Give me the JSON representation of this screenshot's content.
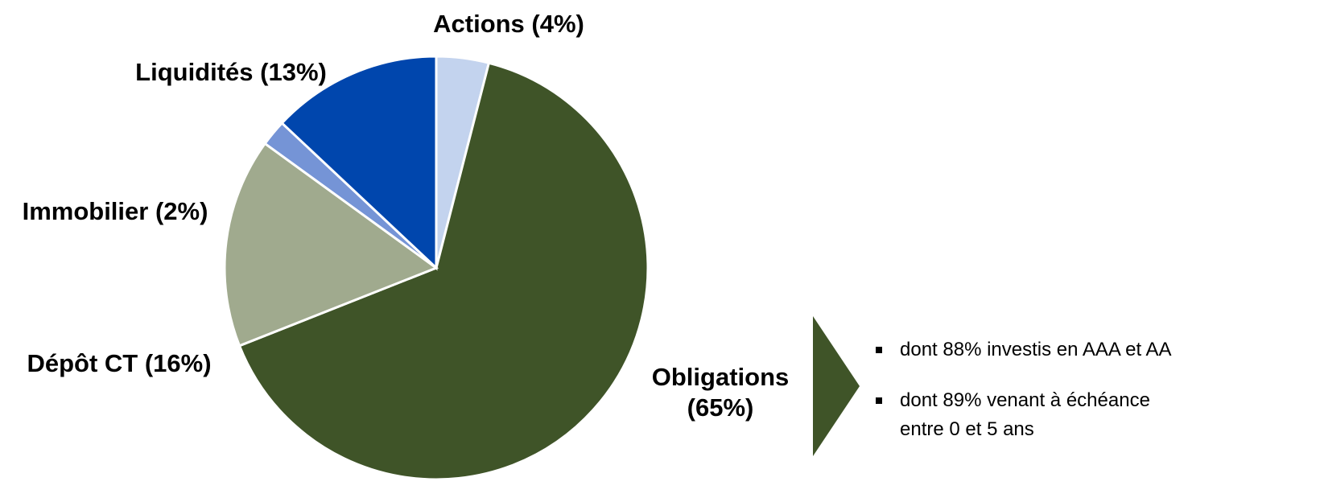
{
  "chart_data": {
    "type": "pie",
    "categories": [
      "Actions (4%)",
      "Obligations (65%)",
      "Dépôt CT (16%)",
      "Immobilier (2%)",
      "Liquidités (13%)"
    ],
    "values": [
      4,
      65,
      16,
      2,
      13
    ],
    "colors": [
      "#c3d3ee",
      "#3f5428",
      "#a0aa8e",
      "#7594d6",
      "#0046ad"
    ],
    "notes": [
      "dont 88% investis en AAA et  AA",
      "dont 89% venant à échéance entre 0 et 5 ans"
    ]
  }
}
